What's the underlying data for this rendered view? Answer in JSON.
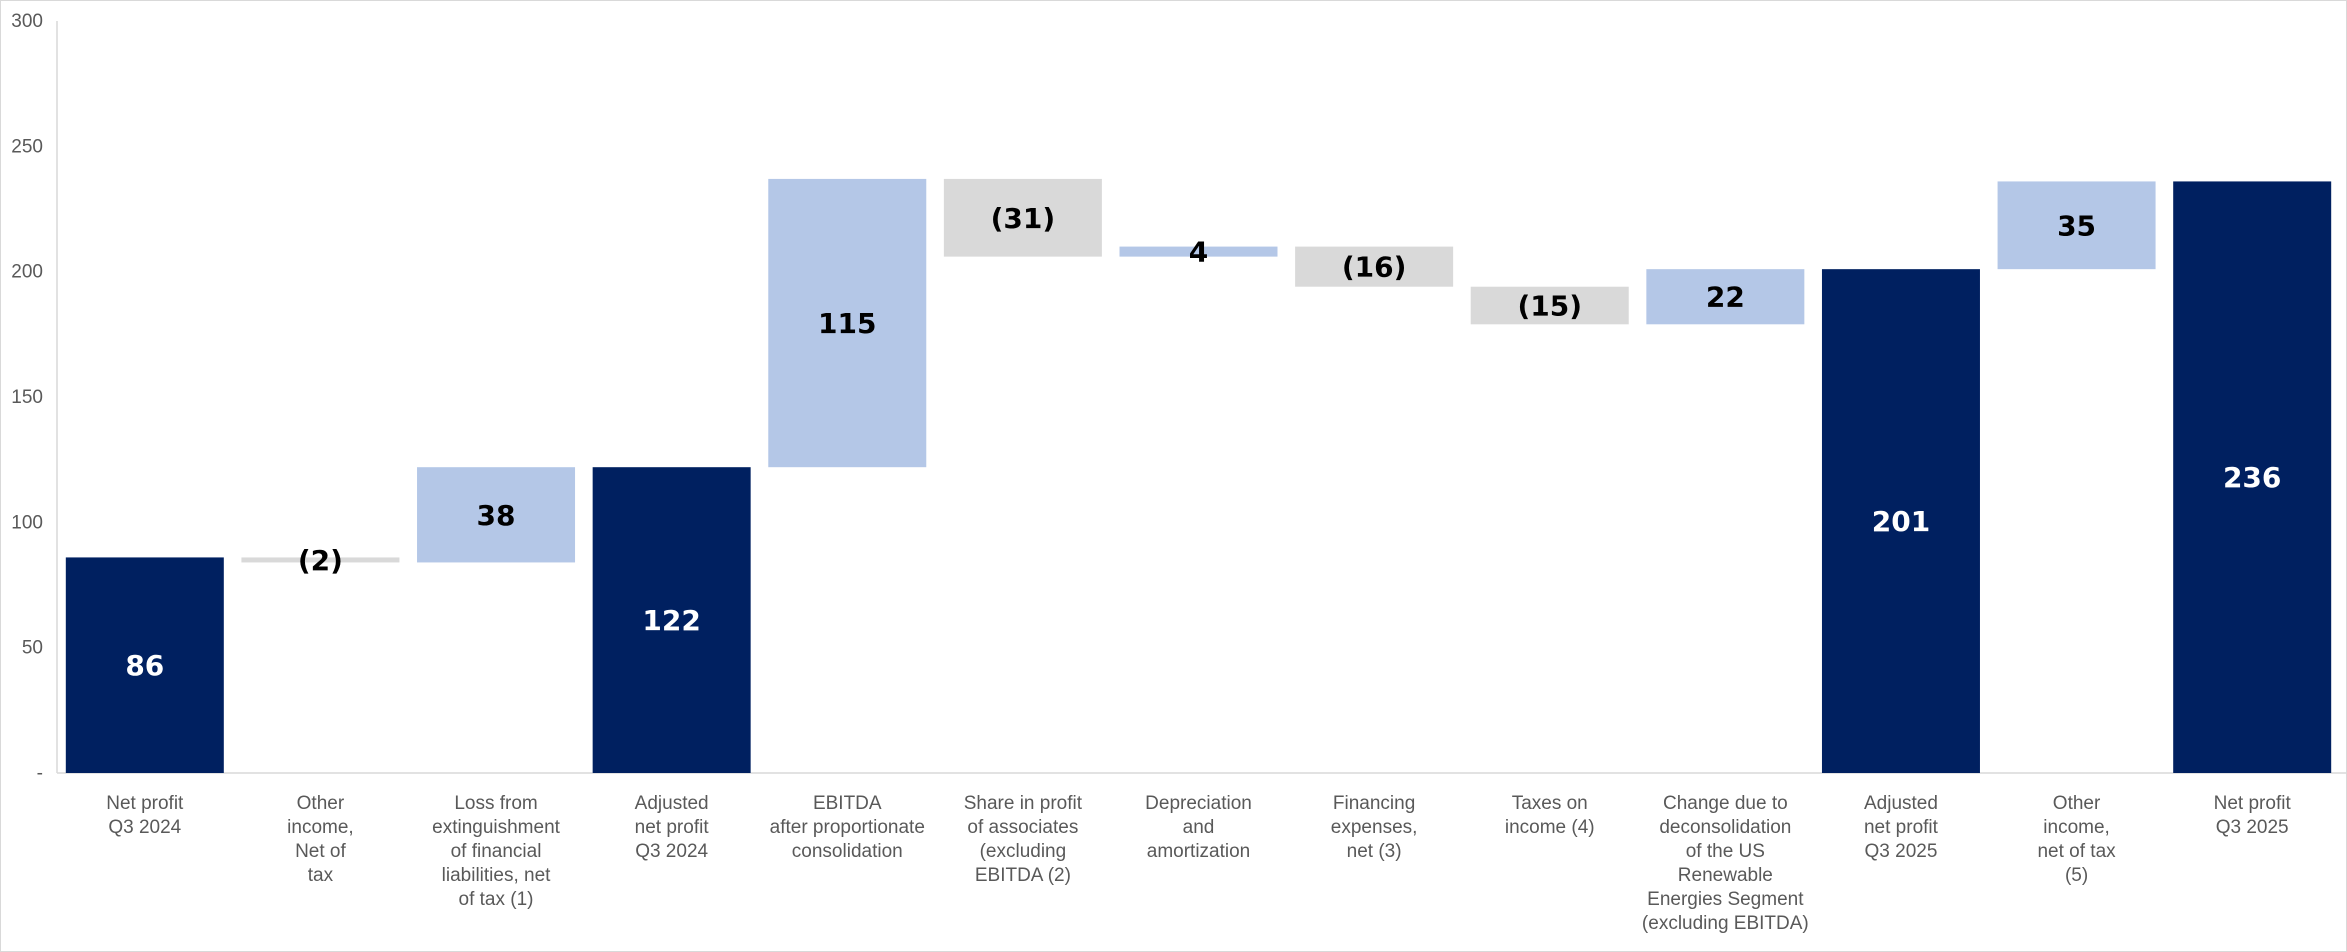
{
  "chart_data": {
    "type": "waterfall",
    "title": "",
    "xlabel": "",
    "ylabel": "",
    "ylim": [
      0,
      300
    ],
    "yticks": [
      "-",
      "50",
      "100",
      "150",
      "200",
      "250",
      "300"
    ],
    "ytick_values": [
      0,
      50,
      100,
      150,
      200,
      250,
      300
    ],
    "grid": false,
    "legend": "none",
    "colors": {
      "total": "#002060",
      "increase": "#b4c7e7",
      "decrease": "#d9d9d9"
    },
    "categories": [
      [
        "Net profit",
        "Q3 2024"
      ],
      [
        "Other",
        "income,",
        "Net of",
        "tax"
      ],
      [
        "Loss from",
        "extinguishment",
        "of financial",
        "liabilities, net",
        "of tax (1)"
      ],
      [
        "Adjusted",
        "net profit",
        "Q3 2024"
      ],
      [
        "EBITDA",
        "after proportionate",
        "consolidation"
      ],
      [
        "Share in profit",
        "of associates",
        "(excluding",
        "EBITDA (2)"
      ],
      [
        "Depreciation",
        "and",
        "amortization"
      ],
      [
        "Financing",
        "expenses,",
        "net (3)"
      ],
      [
        "Taxes on",
        "income (4)"
      ],
      [
        "Change due to",
        "deconsolidation",
        "of the US",
        "Renewable",
        "Energies Segment",
        "(excluding EBITDA)"
      ],
      [
        "Adjusted",
        "net profit",
        "Q3 2025"
      ],
      [
        "Other",
        "income,",
        "net of tax",
        "(5)"
      ],
      [
        "Net profit",
        "Q3 2025"
      ]
    ],
    "values": [
      86,
      -2,
      38,
      122,
      115,
      -31,
      4,
      -16,
      -15,
      22,
      201,
      35,
      236
    ],
    "kinds": [
      "total",
      "decrease",
      "increase",
      "total",
      "increase",
      "decrease",
      "increase",
      "decrease",
      "decrease",
      "increase",
      "total",
      "increase",
      "total"
    ],
    "labels": [
      "86",
      "(2)",
      "38",
      "122",
      "115",
      "(31)",
      "4",
      "(16)",
      "(15)",
      "22",
      "201",
      "35",
      "236"
    ]
  }
}
